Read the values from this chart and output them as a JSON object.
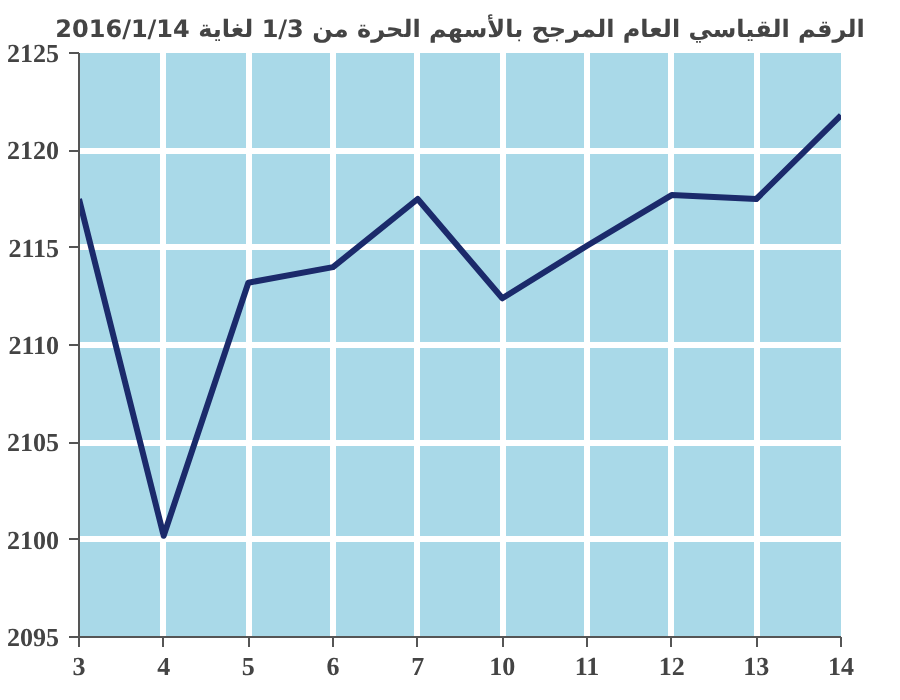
{
  "chart_data": {
    "type": "line",
    "title": "الرقم القياسي العام المرجح بالأسهم الحرة من 1/3 لغاية 2016/1/14",
    "categories": [
      "3",
      "4",
      "5",
      "6",
      "7",
      "10",
      "11",
      "12",
      "13",
      "14"
    ],
    "series": [
      {
        "color": "#1b2a6b",
        "values": [
          2117.5,
          2100.2,
          2113.2,
          2114.0,
          2117.5,
          2112.4,
          2115.1,
          2117.7,
          2117.5,
          2121.8
        ]
      }
    ],
    "ylim": [
      2095,
      2125
    ],
    "yticks": [
      2095,
      2100,
      2105,
      2110,
      2115,
      2120,
      2125
    ],
    "grid": true,
    "marker": "none",
    "line_style": "solid"
  }
}
